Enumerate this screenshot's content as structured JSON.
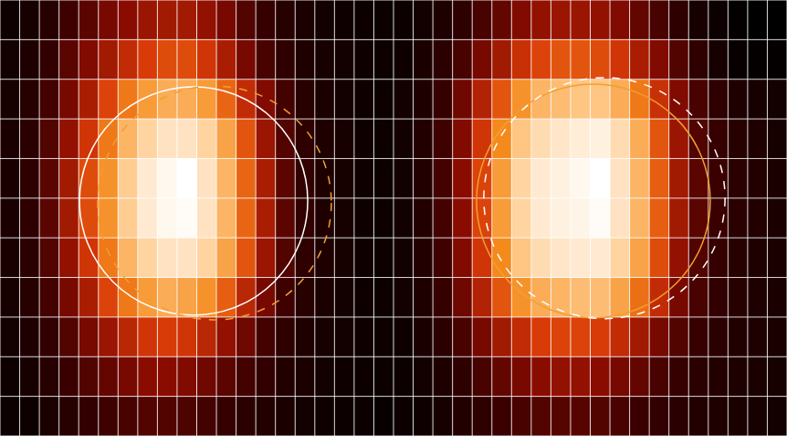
{
  "chart_data": [
    {
      "type": "heatmap",
      "grid": true,
      "tick_labels": false,
      "xlim": [
        0,
        20
      ],
      "ylim": [
        11,
        0
      ],
      "xticks": [
        0,
        1,
        2,
        3,
        4,
        5,
        6,
        7,
        8,
        9,
        10,
        11,
        12,
        13,
        14,
        15,
        16,
        17,
        18,
        19,
        20
      ],
      "yticks": [
        0,
        1,
        2,
        3,
        4,
        5,
        6,
        7,
        8,
        9,
        10,
        11
      ],
      "zlim": [
        0,
        100
      ],
      "z": [
        [
          4,
          6,
          10,
          16,
          22,
          28,
          32,
          36,
          38,
          38,
          34,
          28,
          20,
          14,
          10,
          7,
          5,
          4,
          3,
          3
        ],
        [
          5,
          8,
          13,
          22,
          30,
          38,
          46,
          52,
          56,
          56,
          50,
          40,
          28,
          18,
          12,
          8,
          6,
          5,
          4,
          3
        ],
        [
          6,
          10,
          17,
          28,
          40,
          54,
          66,
          74,
          78,
          78,
          74,
          62,
          46,
          30,
          17,
          10,
          7,
          5,
          4,
          3
        ],
        [
          7,
          11,
          20,
          34,
          50,
          66,
          80,
          88,
          92,
          92,
          88,
          76,
          58,
          36,
          20,
          12,
          8,
          6,
          4,
          3
        ],
        [
          7,
          12,
          22,
          38,
          56,
          72,
          86,
          94,
          98,
          100,
          92,
          80,
          62,
          40,
          22,
          13,
          8,
          6,
          4,
          3
        ],
        [
          7,
          12,
          22,
          38,
          56,
          72,
          86,
          94,
          98,
          99,
          92,
          80,
          62,
          40,
          22,
          13,
          8,
          6,
          4,
          3
        ],
        [
          7,
          11,
          20,
          34,
          50,
          66,
          80,
          88,
          92,
          92,
          88,
          76,
          58,
          36,
          20,
          12,
          8,
          6,
          4,
          3
        ],
        [
          6,
          10,
          17,
          28,
          40,
          54,
          66,
          74,
          78,
          76,
          72,
          60,
          44,
          28,
          16,
          10,
          7,
          5,
          4,
          3
        ],
        [
          5,
          8,
          13,
          20,
          28,
          36,
          44,
          50,
          52,
          50,
          44,
          34,
          26,
          17,
          12,
          8,
          6,
          5,
          4,
          3
        ],
        [
          4,
          6,
          10,
          15,
          20,
          24,
          28,
          32,
          32,
          30,
          26,
          22,
          17,
          13,
          9,
          7,
          5,
          4,
          3,
          3
        ],
        [
          3,
          4,
          7,
          10,
          13,
          16,
          18,
          20,
          20,
          19,
          17,
          14,
          11,
          9,
          7,
          5,
          4,
          3,
          3,
          2
        ]
      ],
      "circles": [
        {
          "cx": 9.84,
          "cy": 5.07,
          "rx": 5.8,
          "ry": 2.88,
          "color": "#ffffff",
          "line_style": "solid"
        },
        {
          "cx": 10.9,
          "cy": 5.12,
          "rx": 5.94,
          "ry": 2.95,
          "color": "#f0a030",
          "line_style": "dashed"
        }
      ]
    },
    {
      "type": "heatmap",
      "grid": true,
      "tick_labels": false,
      "xlim": [
        0,
        20
      ],
      "ylim": [
        11,
        0
      ],
      "xticks": [
        0,
        1,
        2,
        3,
        4,
        5,
        6,
        7,
        8,
        9,
        10,
        11,
        12,
        13,
        14,
        15,
        16,
        17,
        18,
        19,
        20
      ],
      "yticks": [
        0,
        1,
        2,
        3,
        4,
        5,
        6,
        7,
        8,
        9,
        10,
        11
      ],
      "zlim": [
        0,
        100
      ],
      "z": [
        [
          3,
          5,
          8,
          12,
          18,
          24,
          30,
          34,
          36,
          36,
          34,
          30,
          24,
          18,
          12,
          6,
          3,
          1,
          0,
          0
        ],
        [
          4,
          7,
          11,
          18,
          28,
          38,
          48,
          54,
          58,
          58,
          56,
          50,
          40,
          30,
          20,
          12,
          6,
          2,
          1,
          1
        ],
        [
          5,
          8,
          14,
          26,
          42,
          58,
          72,
          80,
          82,
          84,
          84,
          78,
          66,
          48,
          30,
          18,
          12,
          8,
          6,
          5
        ],
        [
          5,
          9,
          16,
          30,
          50,
          70,
          84,
          90,
          93,
          95,
          96,
          90,
          78,
          58,
          36,
          20,
          14,
          10,
          8,
          6
        ],
        [
          5,
          9,
          17,
          32,
          54,
          74,
          88,
          94,
          96,
          98,
          100,
          92,
          80,
          60,
          38,
          22,
          15,
          11,
          9,
          7
        ],
        [
          5,
          9,
          17,
          32,
          54,
          74,
          88,
          94,
          96,
          97,
          99,
          92,
          80,
          60,
          38,
          22,
          15,
          11,
          9,
          7
        ],
        [
          5,
          9,
          16,
          30,
          50,
          70,
          84,
          90,
          93,
          94,
          94,
          88,
          76,
          56,
          34,
          20,
          14,
          10,
          8,
          7
        ],
        [
          5,
          8,
          14,
          26,
          42,
          58,
          72,
          78,
          80,
          82,
          82,
          76,
          64,
          46,
          28,
          18,
          13,
          10,
          8,
          7
        ],
        [
          4,
          7,
          11,
          18,
          28,
          38,
          46,
          52,
          54,
          54,
          52,
          46,
          38,
          28,
          20,
          14,
          11,
          9,
          8,
          7
        ],
        [
          3,
          5,
          8,
          12,
          18,
          24,
          28,
          32,
          34,
          34,
          32,
          28,
          24,
          18,
          14,
          11,
          9,
          8,
          7,
          6
        ],
        [
          3,
          4,
          6,
          9,
          12,
          15,
          18,
          20,
          21,
          21,
          20,
          18,
          15,
          13,
          11,
          9,
          8,
          7,
          6,
          5
        ]
      ],
      "circles": [
        {
          "cx": 10.16,
          "cy": 5.07,
          "rx": 5.94,
          "ry": 2.95,
          "color": "#f0a030",
          "line_style": "solid"
        },
        {
          "cx": 10.72,
          "cy": 5.0,
          "rx": 6.13,
          "ry": 3.04,
          "color": "#ffffff",
          "line_style": "dashed"
        }
      ]
    }
  ]
}
